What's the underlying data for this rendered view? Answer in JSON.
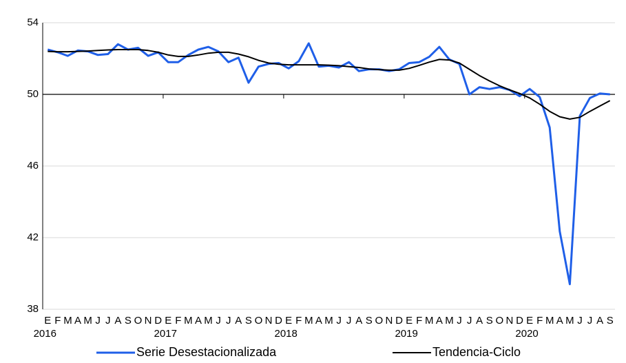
{
  "chart_data": {
    "type": "line",
    "categories": [
      "E",
      "F",
      "M",
      "A",
      "M",
      "J",
      "J",
      "A",
      "S",
      "O",
      "N",
      "D",
      "E",
      "F",
      "M",
      "A",
      "M",
      "J",
      "J",
      "A",
      "S",
      "O",
      "N",
      "D",
      "E",
      "F",
      "M",
      "A",
      "M",
      "J",
      "J",
      "A",
      "S",
      "O",
      "N",
      "D",
      "E",
      "F",
      "M",
      "A",
      "M",
      "J",
      "J",
      "A",
      "S",
      "O",
      "N",
      "D",
      "E",
      "F",
      "M",
      "A",
      "M",
      "J",
      "J",
      "A",
      "S"
    ],
    "years": [
      "2016",
      "2017",
      "2018",
      "2019",
      "2020"
    ],
    "series": [
      {
        "name": "Serie Desestacionalizada",
        "color": "#1f5fe8",
        "values": [
          52.5,
          52.35,
          52.15,
          52.45,
          52.4,
          52.2,
          52.25,
          52.8,
          52.5,
          52.6,
          52.15,
          52.35,
          51.8,
          51.8,
          52.2,
          52.5,
          52.65,
          52.4,
          51.8,
          52.05,
          50.65,
          51.55,
          51.7,
          51.75,
          51.45,
          51.85,
          52.85,
          51.55,
          51.6,
          51.5,
          51.8,
          51.3,
          51.4,
          51.4,
          51.3,
          51.4,
          51.75,
          51.8,
          52.1,
          52.65,
          51.95,
          51.7,
          50.0,
          50.4,
          50.3,
          50.4,
          50.25,
          49.9,
          50.3,
          49.85,
          48.15,
          42.35,
          39.4,
          48.8,
          49.8,
          50.05,
          50.0
        ]
      },
      {
        "name": "Tendencia-Ciclo",
        "color": "#000000",
        "values": [
          52.4,
          52.38,
          52.38,
          52.4,
          52.42,
          52.45,
          52.48,
          52.5,
          52.5,
          52.5,
          52.45,
          52.35,
          52.2,
          52.12,
          52.12,
          52.2,
          52.3,
          52.35,
          52.35,
          52.25,
          52.1,
          51.9,
          51.75,
          51.68,
          51.65,
          51.65,
          51.65,
          51.65,
          51.63,
          51.6,
          51.55,
          51.5,
          51.42,
          51.38,
          51.35,
          51.35,
          51.45,
          51.62,
          51.8,
          51.95,
          51.92,
          51.75,
          51.4,
          51.05,
          50.75,
          50.48,
          50.25,
          50.05,
          49.8,
          49.45,
          49.05,
          48.75,
          48.62,
          48.72,
          49.05,
          49.35,
          49.65
        ]
      }
    ],
    "ylim": [
      38,
      54
    ],
    "yticks": [
      38,
      42,
      46,
      50,
      54
    ],
    "x_axis_at": 50,
    "grid": true
  }
}
